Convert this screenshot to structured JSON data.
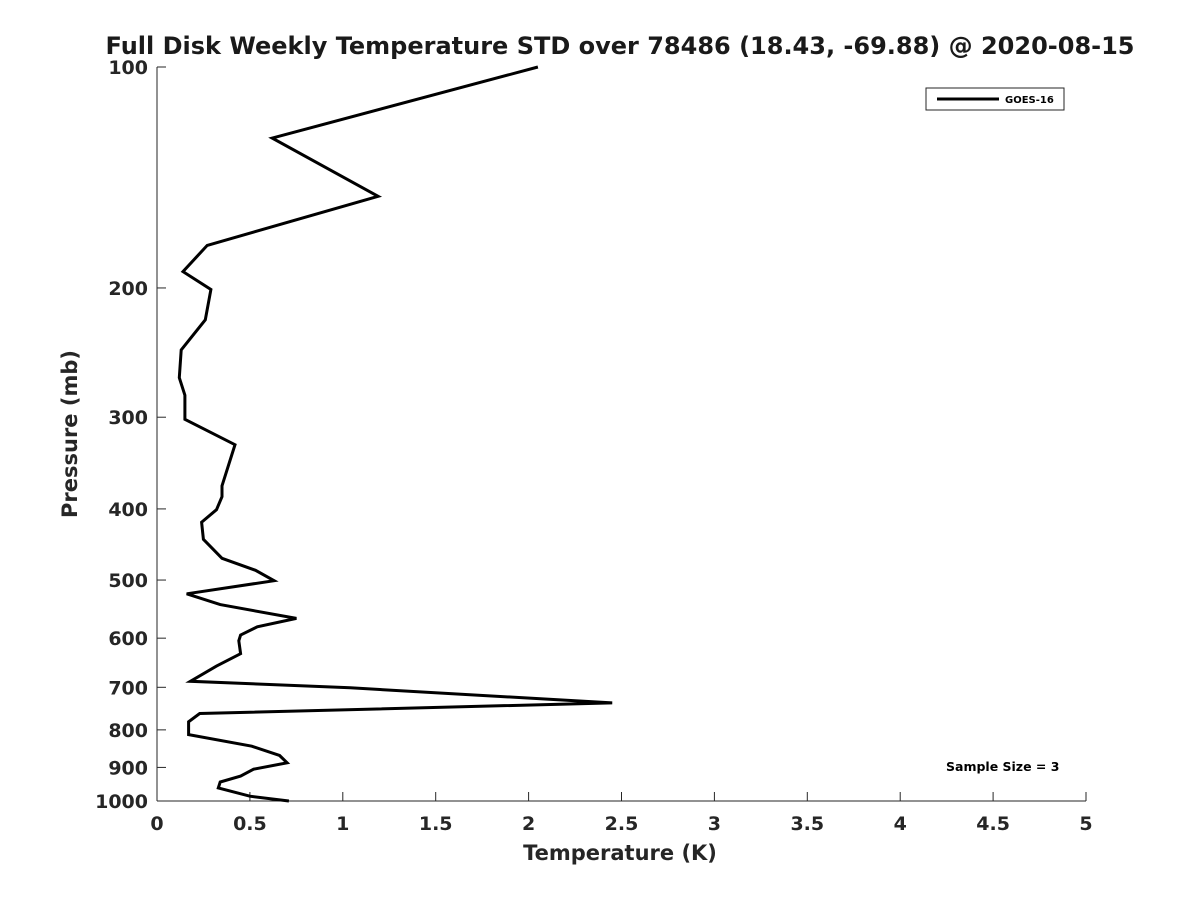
{
  "chart_data": {
    "type": "line",
    "title": "Full Disk Weekly Temperature STD over 78486 (18.43, -69.88) @ 2020-08-15",
    "xlabel": "Temperature (K)",
    "ylabel": "Pressure (mb)",
    "xlim": [
      0,
      5
    ],
    "ylim": [
      100,
      1000
    ],
    "y_scale": "log",
    "y_reversed": true,
    "xticks": [
      0,
      0.5,
      1,
      1.5,
      2,
      2.5,
      3,
      3.5,
      4,
      4.5,
      5
    ],
    "xtick_labels": [
      "0",
      "0.5",
      "1",
      "1.5",
      "2",
      "2.5",
      "3",
      "3.5",
      "4",
      "4.5",
      "5"
    ],
    "yticks": [
      100,
      200,
      300,
      400,
      500,
      600,
      700,
      800,
      900,
      1000
    ],
    "ytick_labels": [
      "100",
      "200",
      "300",
      "400",
      "500",
      "600",
      "700",
      "800",
      "900",
      "1000"
    ],
    "grid": false,
    "legend_position": "top-right",
    "series": [
      {
        "name": "GOES-16",
        "color": "#000000",
        "points": [
          [
            2.05,
            100
          ],
          [
            0.62,
            125
          ],
          [
            1.19,
            150
          ],
          [
            0.27,
            175
          ],
          [
            0.14,
            190
          ],
          [
            0.29,
            201
          ],
          [
            0.26,
            221
          ],
          [
            0.13,
            243
          ],
          [
            0.12,
            265
          ],
          [
            0.15,
            280
          ],
          [
            0.15,
            302
          ],
          [
            0.42,
            327
          ],
          [
            0.35,
            372
          ],
          [
            0.35,
            385
          ],
          [
            0.32,
            401
          ],
          [
            0.24,
            417
          ],
          [
            0.25,
            440
          ],
          [
            0.35,
            467
          ],
          [
            0.53,
            485
          ],
          [
            0.63,
            501
          ],
          [
            0.16,
            522
          ],
          [
            0.34,
            540
          ],
          [
            0.75,
            564
          ],
          [
            0.54,
            579
          ],
          [
            0.45,
            594
          ],
          [
            0.44,
            605
          ],
          [
            0.45,
            630
          ],
          [
            0.32,
            655
          ],
          [
            0.18,
            687
          ],
          [
            1.04,
            701
          ],
          [
            2.45,
            735
          ],
          [
            0.23,
            760
          ],
          [
            0.17,
            780
          ],
          [
            0.17,
            812
          ],
          [
            0.51,
            842
          ],
          [
            0.66,
            867
          ],
          [
            0.7,
            887
          ],
          [
            0.52,
            905
          ],
          [
            0.45,
            925
          ],
          [
            0.34,
            942
          ],
          [
            0.33,
            960
          ],
          [
            0.5,
            985
          ],
          [
            0.71,
            1000
          ]
        ]
      }
    ],
    "annotation": "Sample Size = 3"
  }
}
